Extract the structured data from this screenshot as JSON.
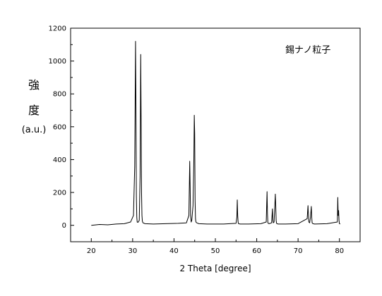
{
  "chart_data": {
    "type": "line",
    "title": "",
    "xlabel": "2 Theta [degree]",
    "ylabel_lines": [
      "強",
      "度",
      "(a.u.)"
    ],
    "annotation": "錫ナノ粒子",
    "xlim": [
      15,
      85
    ],
    "ylim": [
      -100,
      1200
    ],
    "xticks": [
      20,
      30,
      40,
      50,
      60,
      70,
      80
    ],
    "yticks": [
      0,
      200,
      400,
      600,
      800,
      1000,
      1200
    ],
    "grid": false,
    "line_color": "#000000",
    "series": [
      {
        "x": [
          20,
          22,
          24,
          26,
          28,
          29.5,
          30.2,
          30.5,
          30.7,
          30.8,
          30.9,
          31.0,
          31.1,
          31.3,
          31.6,
          31.8,
          31.95,
          32.05,
          32.15,
          32.25,
          32.35,
          32.5,
          33,
          35,
          38,
          41,
          43,
          43.6,
          43.8,
          43.9,
          44.0,
          44.15,
          44.3,
          44.6,
          44.8,
          44.9,
          45.0,
          45.1,
          45.2,
          45.3,
          45.5,
          46,
          48,
          52,
          55,
          55.2,
          55.3,
          55.4,
          55.5,
          55.6,
          56,
          58,
          61,
          62.3,
          62.5,
          62.6,
          62.7,
          62.8,
          63.0,
          63.6,
          63.8,
          63.9,
          64.0,
          64.2,
          64.5,
          64.6,
          64.7,
          64.8,
          64.9,
          65.2,
          67,
          70,
          72.2,
          72.4,
          72.5,
          72.6,
          72.8,
          73.0,
          73.2,
          73.3,
          73.4,
          73.6,
          74,
          77,
          79.5,
          79.6,
          79.7,
          79.8,
          79.9,
          80.0,
          80.2
        ],
        "y": [
          0,
          5,
          3,
          8,
          10,
          20,
          60,
          360,
          1120,
          710,
          180,
          50,
          20,
          18,
          30,
          300,
          1040,
          650,
          200,
          60,
          25,
          15,
          10,
          8,
          10,
          12,
          15,
          60,
          390,
          240,
          60,
          20,
          30,
          120,
          400,
          670,
          560,
          150,
          40,
          20,
          15,
          10,
          8,
          8,
          12,
          50,
          155,
          60,
          20,
          10,
          8,
          8,
          10,
          20,
          205,
          70,
          15,
          12,
          10,
          15,
          100,
          35,
          15,
          20,
          190,
          120,
          30,
          12,
          10,
          8,
          8,
          10,
          40,
          120,
          60,
          20,
          15,
          50,
          115,
          50,
          15,
          10,
          8,
          10,
          20,
          170,
          60,
          90,
          30,
          10,
          8
        ]
      }
    ]
  }
}
